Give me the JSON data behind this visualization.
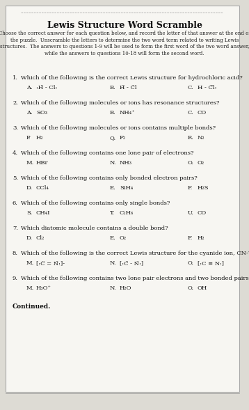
{
  "title": "Lewis Structure Word Scramble",
  "inst1": "Choose the correct answer for each question below, and record the letter of that answer at the end of",
  "inst2": "the puzzle.  Unscramble the letters to determine the two word term related to writing Lewis",
  "inst3": "structures.  The answers to questions 1-9 will be used to form the first word of the two word answer,",
  "inst4": "while the answers to questions 10-18 will form the second word.",
  "questions": [
    {
      "num": "1.",
      "text": "Which of the following is the correct Lewis structure for hydrochloric acid?",
      "choices": [
        {
          "letter": "A.",
          "text": ":Ḧ - Cl:"
        },
        {
          "letter": "B.",
          "text": "Ḧ - C̈l"
        },
        {
          "letter": "C.",
          "text": "H - C̈l̈:"
        }
      ]
    },
    {
      "num": "2.",
      "text": "Which of the following molecules or ions has resonance structures?",
      "choices": [
        {
          "letter": "A.",
          "text": "SO₃"
        },
        {
          "letter": "B.",
          "text": "NH₄⁺"
        },
        {
          "letter": "C.",
          "text": "CO"
        }
      ]
    },
    {
      "num": "3.",
      "text": "Which of the following molecules or ions contains multiple bonds?",
      "choices": [
        {
          "letter": "P.",
          "text": "H₂"
        },
        {
          "letter": "Q.",
          "text": "F₂"
        },
        {
          "letter": "R.",
          "text": "N₂"
        }
      ]
    },
    {
      "num": "4.",
      "text": "Which of the following contains one lone pair of electrons?",
      "choices": [
        {
          "letter": "M.",
          "text": "HBr"
        },
        {
          "letter": "N.",
          "text": "NH₃"
        },
        {
          "letter": "O.",
          "text": "O₂"
        }
      ]
    },
    {
      "num": "5.",
      "text": "Which of the following contains only bonded electron pairs?",
      "choices": [
        {
          "letter": "D.",
          "text": "CCl₄"
        },
        {
          "letter": "E.",
          "text": "SiH₄"
        },
        {
          "letter": "F.",
          "text": "H₂S"
        }
      ]
    },
    {
      "num": "6.",
      "text": "Which of the following contains only single bonds?",
      "choices": [
        {
          "letter": "S.",
          "text": "CH₄I"
        },
        {
          "letter": "T.",
          "text": "C₂H₆"
        },
        {
          "letter": "U.",
          "text": "CO"
        }
      ]
    },
    {
      "num": "7.",
      "text": "Which diatomic molecule contains a double bond?",
      "choices": [
        {
          "letter": "D.",
          "text": "Cl₂"
        },
        {
          "letter": "E.",
          "text": "O₂"
        },
        {
          "letter": "F.",
          "text": "H₂"
        }
      ]
    },
    {
      "num": "8.",
      "text": "Which of the following is the correct Lewis structure for the cyanide ion, CN-?",
      "choices": [
        {
          "letter": "M.",
          "text": "[:C̈ = N̈:]-"
        },
        {
          "letter": "N.",
          "text": "[:C̈ - N̈:]"
        },
        {
          "letter": "O.",
          "text": "[:C ≡ N:]"
        }
      ]
    },
    {
      "num": "9.",
      "text": "Which of the following contains two lone pair electrons and two bonded pairs?",
      "choices": [
        {
          "letter": "M.",
          "text": "H₃O⁺"
        },
        {
          "letter": "N.",
          "text": "H₂O"
        },
        {
          "letter": "O.",
          "text": "OH"
        }
      ]
    }
  ],
  "continued": "Continued.",
  "paper_color": "#f7f6f2",
  "border_color": "#aaaaaa",
  "text_color": "#111111"
}
